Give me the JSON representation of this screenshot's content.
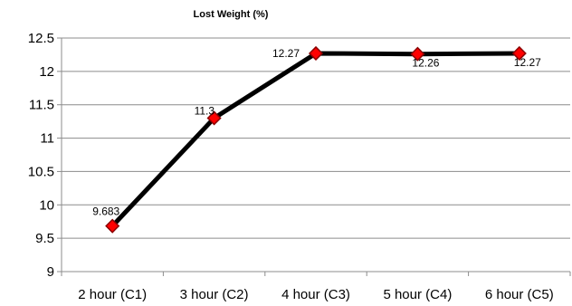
{
  "chart_data": {
    "type": "line",
    "title": "Lost Weight (%)",
    "xlabel": "",
    "ylabel": "",
    "categories": [
      "2 hour (C1)",
      "3 hour (C2)",
      "4 hour (C3)",
      "5 hour (C4)",
      "6  hour (C5)"
    ],
    "series": [
      {
        "values": [
          9.683,
          11.3,
          12.27,
          12.26,
          12.27
        ],
        "labels": [
          "9.683",
          "11.3",
          "12.27",
          "12.26",
          "12.27"
        ],
        "line_color": "#000000",
        "marker": "diamond",
        "marker_color": "#ff0000",
        "marker_edge_color": "#8b0000"
      }
    ],
    "ylim": [
      9,
      12.5
    ],
    "yticks": [
      "9",
      "9.5",
      "10",
      "10.5",
      "11",
      "11.5",
      "12",
      "12.5"
    ],
    "grid": "horizontal",
    "legend": "none"
  }
}
